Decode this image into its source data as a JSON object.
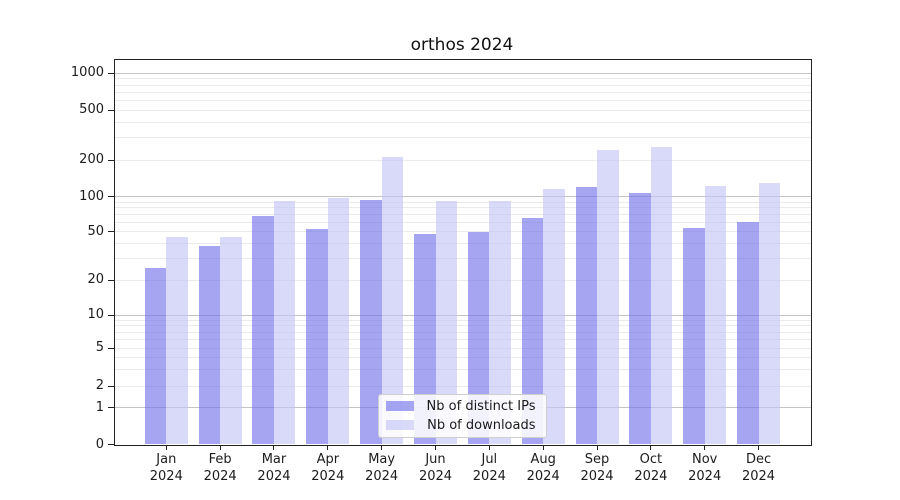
{
  "figure_title": "orthos 2024",
  "chart_data": {
    "type": "bar",
    "title": "orthos 2024",
    "categories": [
      "Jan",
      "Feb",
      "Mar",
      "Apr",
      "May",
      "Jun",
      "Jul",
      "Aug",
      "Sep",
      "Oct",
      "Nov",
      "Dec"
    ],
    "year": "2024",
    "series": [
      {
        "name": "Nb of distinct IPs",
        "fill_rgba": "rgba(110,110,234,0.62)",
        "color_on_white": "#a5a5f2",
        "values": [
          25,
          38,
          68,
          53,
          93,
          48,
          50,
          66,
          120,
          107,
          54,
          60
        ]
      },
      {
        "name": "Nb of downloads",
        "fill_rgba": "rgba(193,193,245,0.62)",
        "color_on_white": "#d8d8fb",
        "values": [
          45,
          45,
          92,
          97,
          212,
          92,
          91,
          116,
          241,
          256,
          122,
          130
        ]
      }
    ],
    "xlabel": "",
    "ylabel": "",
    "yscale": "symlog",
    "ylim": [
      0,
      1300
    ],
    "y_ticks": [
      0,
      1,
      2,
      5,
      10,
      20,
      50,
      100,
      200,
      500,
      1000
    ],
    "grid": "major+minor",
    "legend_position": "lower center"
  },
  "colors": {
    "grid_major": "#c4c4c4",
    "grid_minor": "#ebebeb",
    "spine": "#222222",
    "tick_text": "#1c1c1c"
  }
}
